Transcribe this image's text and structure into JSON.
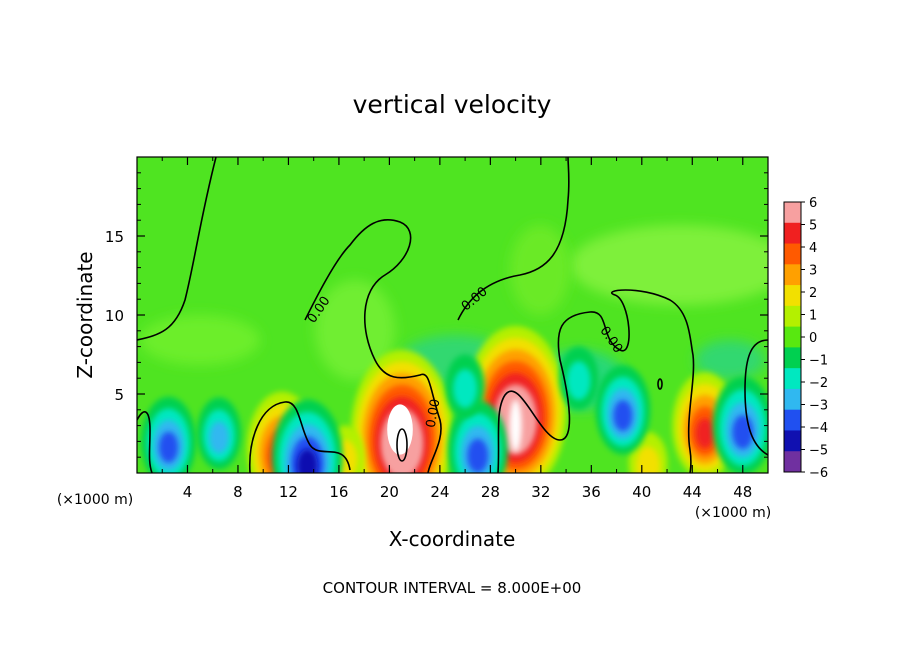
{
  "chart_data": {
    "type": "heatmap",
    "title": "vertical velocity",
    "xlabel": "X-coordinate",
    "ylabel": "Z-coordinate",
    "x_unit_left": "(×1000 m)",
    "x_unit_right": "(×1000 m)",
    "footer": "CONTOUR INTERVAL = 8.000E+00",
    "xlim": [
      0,
      50
    ],
    "ylim": [
      0,
      20
    ],
    "x_ticks": [
      4,
      8,
      12,
      16,
      20,
      24,
      28,
      32,
      36,
      40,
      44,
      48
    ],
    "y_ticks": [
      5,
      10,
      15
    ],
    "contour_labels": [
      "0.00",
      "0.00",
      "0.00",
      "0.00"
    ],
    "colorbar": {
      "levels": [
        "6",
        "5",
        "4",
        "3",
        "2",
        "1",
        "0",
        "−1",
        "−2",
        "−3",
        "−4",
        "−5",
        "−6"
      ],
      "colors": [
        "#f7a0a0",
        "#f02020",
        "#ff5a00",
        "#ffa000",
        "#f2e000",
        "#b4f000",
        "#58e810",
        "#00d050",
        "#00e8c0",
        "#30b8f0",
        "#2050f0",
        "#1010b0",
        "#7030a0"
      ]
    },
    "features": [
      {
        "kind": "updraft",
        "x": 21,
        "z": 2.5,
        "w": 8,
        "label_color": "#ffffff"
      },
      {
        "kind": "updraft",
        "x": 30,
        "z": 4,
        "w": 8
      },
      {
        "kind": "updraft",
        "x": 11.5,
        "z": 1.5,
        "w": 5
      },
      {
        "kind": "updraft",
        "x": 45,
        "z": 3,
        "w": 4.5
      },
      {
        "kind": "updraft",
        "x": 16.5,
        "z": 1,
        "w": 2
      },
      {
        "kind": "updraft",
        "x": 40.5,
        "z": 0.6,
        "w": 2
      },
      {
        "kind": "downdraft",
        "x": 2.5,
        "z": 2,
        "w": -3.5
      },
      {
        "kind": "downdraft",
        "x": 13.5,
        "z": 1,
        "w": -5
      },
      {
        "kind": "downdraft",
        "x": 27,
        "z": 1.5,
        "w": -4
      },
      {
        "kind": "downdraft",
        "x": 38.5,
        "z": 4,
        "w": -3.5
      },
      {
        "kind": "downdraft",
        "x": 48,
        "z": 3,
        "w": -4
      },
      {
        "kind": "downdraft",
        "x": 26,
        "z": 5.5,
        "w": -2
      },
      {
        "kind": "downdraft",
        "x": 35,
        "z": 6,
        "w": -2
      },
      {
        "kind": "downdraft",
        "x": 6.5,
        "z": 2.5,
        "w": -2.5
      }
    ]
  }
}
